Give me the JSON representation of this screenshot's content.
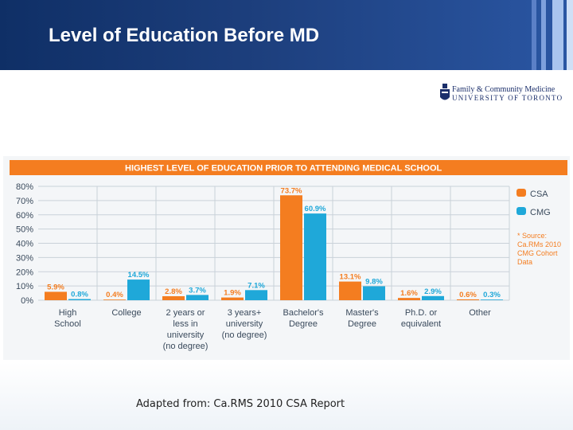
{
  "slide": {
    "title": "Level of Education Before MD",
    "caption": "Adapted from: Ca.RMS 2010 CSA Report"
  },
  "logo": {
    "line1": "Family & Community Medicine",
    "line2": "UNIVERSITY OF TORONTO"
  },
  "colors": {
    "csa": "#f47d20",
    "cmg": "#1fa8d9",
    "banner": "#f47d20",
    "title_bar": "#17366f"
  },
  "chart_data": {
    "type": "bar",
    "title": "HIGHEST LEVEL OF EDUCATION PRIOR TO ATTENDING MEDICAL SCHOOL",
    "categories": [
      [
        "High",
        "School"
      ],
      [
        "College"
      ],
      [
        "2 years or",
        "less in",
        "university",
        "(no degree)"
      ],
      [
        "3 years+",
        "university",
        "(no degree)"
      ],
      [
        "Bachelor's",
        "Degree"
      ],
      [
        "Master's",
        "Degree"
      ],
      [
        "Ph.D. or",
        "equivalent"
      ],
      [
        "Other"
      ]
    ],
    "series": [
      {
        "name": "CSA",
        "values": [
          5.9,
          0.4,
          2.8,
          1.9,
          73.7,
          13.1,
          1.6,
          0.6
        ],
        "labels": [
          "5.9%",
          "0.4%",
          "2.8%",
          "1.9%",
          "73.7%",
          "13.1%",
          "1.6%",
          "0.6%"
        ]
      },
      {
        "name": "CMG",
        "values": [
          0.8,
          14.5,
          3.7,
          7.1,
          60.9,
          9.8,
          2.9,
          0.3
        ],
        "labels": [
          "0.8%",
          "14.5%",
          "3.7%",
          "7.1%",
          "60.9%",
          "9.8%",
          "2.9%",
          "0.3%"
        ]
      }
    ],
    "yticks": [
      "80%",
      "70%",
      "60%",
      "50%",
      "40%",
      "30%",
      "20%",
      "10%",
      "0%"
    ],
    "ylim": [
      0,
      80
    ],
    "legend": [
      "CSA",
      "CMG"
    ],
    "source_note": [
      "* Source:",
      "Ca.RMs 2010",
      "CMG Cohort",
      "Data"
    ],
    "xlabel": "",
    "ylabel": "",
    "grid": true
  }
}
